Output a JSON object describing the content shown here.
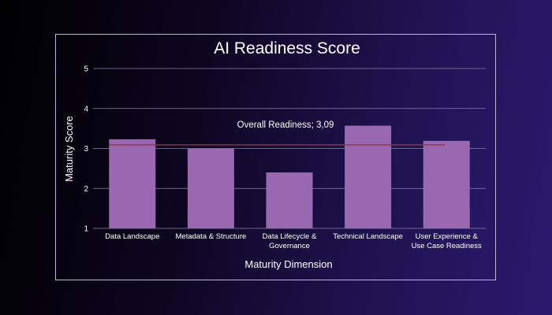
{
  "chart_data": {
    "type": "bar",
    "title": "AI Readiness Score",
    "xlabel": "Maturity Dimension",
    "ylabel": "Maturity Score",
    "categories": [
      [
        "Data Landscape"
      ],
      [
        "Metadata & Structure"
      ],
      [
        "Data Lifecycle &",
        "Governance"
      ],
      [
        "Technical Landscape"
      ],
      [
        "User Experience &",
        "Use Case Readiness"
      ]
    ],
    "values": [
      3.23,
      3.0,
      2.4,
      3.57,
      3.19
    ],
    "ylim": [
      1,
      5
    ],
    "yticks": [
      "1",
      "2",
      "3",
      "4",
      "5"
    ],
    "grid": true,
    "bar_color": "#9a68b0",
    "reference_line": {
      "label": "Overall Readiness; 3,09",
      "value": 3.09,
      "color": "#8a3a48"
    }
  }
}
